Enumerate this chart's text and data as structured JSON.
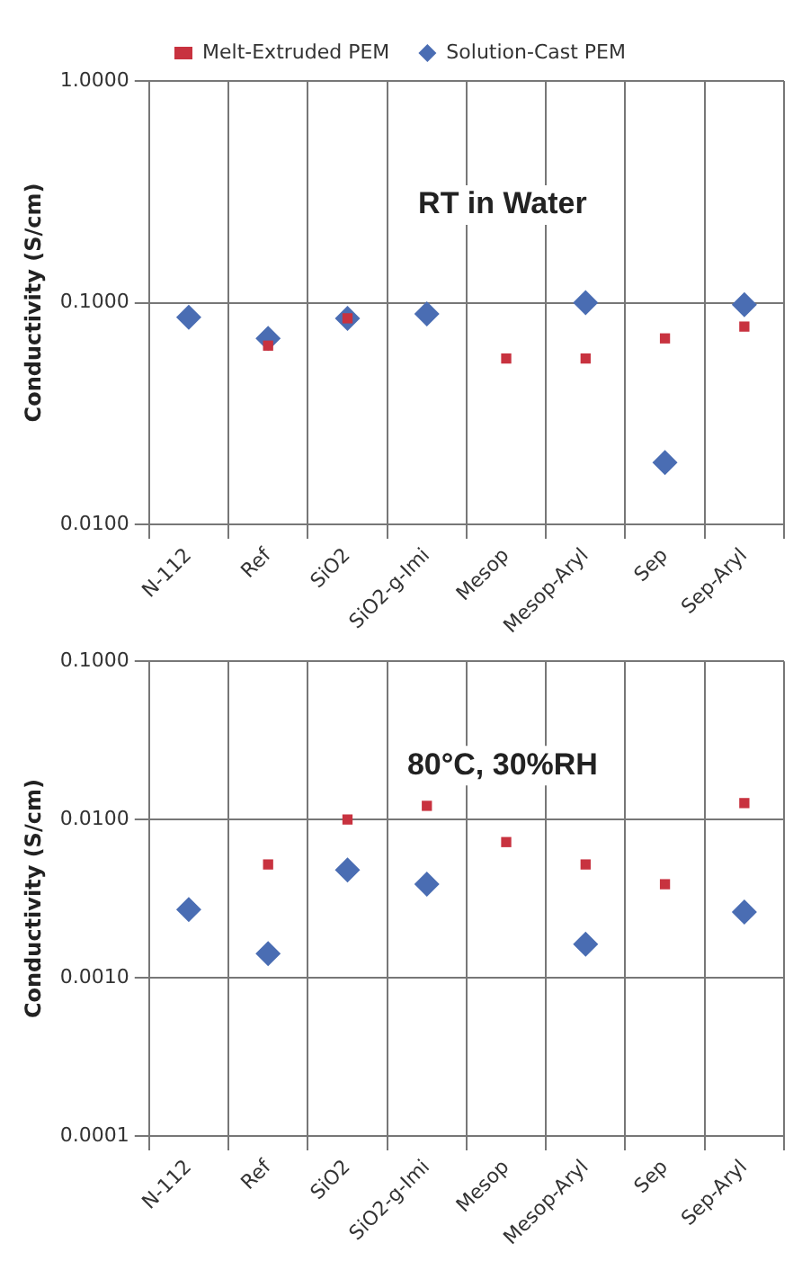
{
  "chart_data": [
    {
      "type": "scatter",
      "ylabel": "Conductivity (S/cm)",
      "annotations": [
        "RT in Water"
      ],
      "categories": [
        "N-112",
        "Ref",
        "SiO2",
        "SiO2-g-Imi",
        "Mesop",
        "Mesop-Aryl",
        "Sep",
        "Sep-Aryl"
      ],
      "log": "y",
      "ylim": [
        0.01,
        1
      ],
      "yticks": [
        {
          "value": 0.01,
          "label": "0.0100"
        },
        {
          "value": 0.1,
          "label": "0.1000"
        },
        {
          "value": 1,
          "label": "1.0000"
        }
      ],
      "grid": true,
      "legend": "top",
      "series": [
        {
          "name": "Melt-Extruded PEM",
          "color": "#c8323f",
          "marker": "square",
          "values": [
            null,
            0.064,
            0.085,
            null,
            0.056,
            0.056,
            0.069,
            0.078
          ]
        },
        {
          "name": "Solution-Cast PEM",
          "color": "#4a6db3",
          "marker": "diamond",
          "values": [
            0.086,
            0.069,
            0.085,
            0.089,
            null,
            0.1,
            0.019,
            0.098
          ]
        }
      ]
    },
    {
      "type": "scatter",
      "ylabel": "Conductivity (S/cm)",
      "annotations": [
        "80°C, 30%RH"
      ],
      "categories": [
        "N-112",
        "Ref",
        "SiO2",
        "SiO2-g-Imi",
        "Mesop",
        "Mesop-Aryl",
        "Sep",
        "Sep-Aryl"
      ],
      "log": "y",
      "ylim": [
        0.0001,
        0.1
      ],
      "yticks": [
        {
          "value": 0.0001,
          "label": "0.0001"
        },
        {
          "value": 0.001,
          "label": "0.0010"
        },
        {
          "value": 0.01,
          "label": "0.0100"
        },
        {
          "value": 0.1,
          "label": "0.1000"
        }
      ],
      "grid": true,
      "series": [
        {
          "color": "#c8323f",
          "marker": "square",
          "values": [
            null,
            0.0052,
            0.01,
            0.0122,
            0.0072,
            0.0052,
            0.0039,
            0.0127
          ]
        },
        {
          "color": "#4a6db3",
          "marker": "diamond",
          "values": [
            0.0027,
            0.00142,
            0.0048,
            0.0039,
            null,
            0.00163,
            null,
            0.0026
          ]
        }
      ]
    }
  ]
}
